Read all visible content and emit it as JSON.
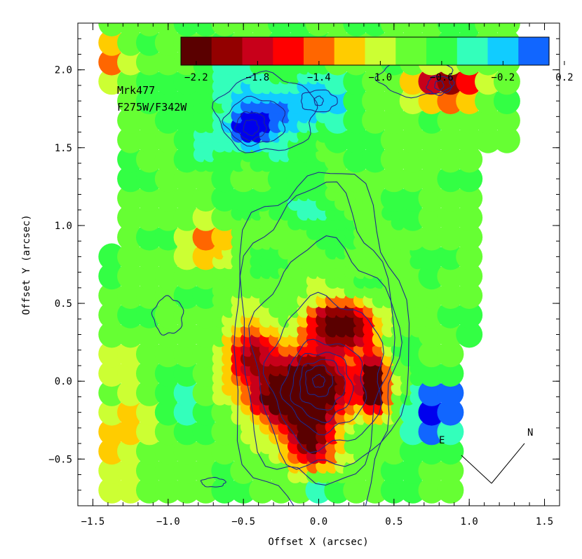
{
  "chart_data": {
    "type": "heatmap",
    "title": "",
    "annotations": [
      "Mrk477",
      "F275W/F342W"
    ],
    "xlabel": "Offset X (arcsec)",
    "ylabel": "Offset Y (arcsec)",
    "xlim": [
      -1.6,
      1.6
    ],
    "ylim": [
      -0.8,
      2.3
    ],
    "xticks": [
      -1.5,
      -1.0,
      -0.5,
      0.0,
      0.5,
      1.0,
      1.5
    ],
    "yticks": [
      -0.5,
      0.0,
      0.5,
      1.0,
      1.5,
      2.0
    ],
    "x_tick_labels": [
      "−1.5",
      "−1.0",
      "−0.5",
      "0.0",
      "0.5",
      "1.0",
      "1.5"
    ],
    "y_tick_labels": [
      "−0.5",
      "0.0",
      "0.5",
      "1.0",
      "1.5",
      "2.0"
    ],
    "colorbar": {
      "levels": [
        -2.3,
        -2.1,
        -1.9,
        -1.7,
        -1.5,
        -1.3,
        -1.1,
        -0.9,
        -0.7,
        -0.5,
        -0.3,
        -0.1,
        0.1
      ],
      "labels": [
        "−2.2",
        "−1.8",
        "−1.4",
        "−1.0",
        "−0.6",
        "−0.2",
        "0.2"
      ],
      "label_values": [
        -2.2,
        -1.8,
        -1.4,
        -1.0,
        -0.6,
        -0.2,
        0.2
      ],
      "colors": [
        "#5a0000",
        "#930000",
        "#c8001a",
        "#ff0000",
        "#ff6600",
        "#ffcc00",
        "#ccff33",
        "#66ff33",
        "#33ff44",
        "#33ffbb",
        "#11ccff",
        "#1166ff",
        "#0000ee"
      ]
    },
    "components": [
      {
        "x": 0.0,
        "y": 0.0,
        "sx": 0.2,
        "sy": 0.16,
        "amp": -1.7
      },
      {
        "x": 0.15,
        "y": 0.38,
        "sx": 0.16,
        "sy": 0.1,
        "amp": -1.7
      },
      {
        "x": -0.22,
        "y": -0.12,
        "sx": 0.16,
        "sy": 0.1,
        "amp": -1.5
      },
      {
        "x": 0.38,
        "y": 0.0,
        "sx": 0.06,
        "sy": 0.14,
        "amp": -1.6
      },
      {
        "x": -0.05,
        "y": -0.4,
        "sx": 0.12,
        "sy": 0.12,
        "amp": -1.4
      },
      {
        "x": -0.45,
        "y": 0.18,
        "sx": 0.12,
        "sy": 0.14,
        "amp": -1.2
      },
      {
        "x": -0.75,
        "y": 0.9,
        "sx": 0.12,
        "sy": 0.12,
        "amp": -0.5
      },
      {
        "x": 0.85,
        "y": 1.9,
        "sx": 0.18,
        "sy": 0.08,
        "amp": -1.2
      },
      {
        "x": -0.45,
        "y": 1.63,
        "sx": 0.07,
        "sy": 0.06,
        "amp": 0.9
      },
      {
        "x": -0.4,
        "y": 1.72,
        "sx": 0.3,
        "sy": 0.22,
        "amp": 0.55
      },
      {
        "x": 0.0,
        "y": 1.8,
        "sx": 0.22,
        "sy": 0.12,
        "amp": 0.35
      },
      {
        "x": -0.1,
        "y": 1.1,
        "sx": 0.15,
        "sy": 0.08,
        "amp": 0.35
      },
      {
        "x": 0.8,
        "y": -0.15,
        "sx": 0.1,
        "sy": 0.12,
        "amp": 0.95
      },
      {
        "x": 0.7,
        "y": -0.35,
        "sx": 0.08,
        "sy": 0.08,
        "amp": 0.6
      },
      {
        "x": -0.9,
        "y": -0.15,
        "sx": 0.1,
        "sy": 0.08,
        "amp": 0.4
      },
      {
        "x": 0.05,
        "y": -0.67,
        "sx": 0.1,
        "sy": 0.05,
        "amp": 0.4
      },
      {
        "x": -1.3,
        "y": -0.4,
        "sx": 0.15,
        "sy": 0.3,
        "amp": -0.45
      },
      {
        "x": -1.4,
        "y": 2.1,
        "sx": 0.1,
        "sy": 0.1,
        "amp": -0.6
      }
    ],
    "base_value": -0.75,
    "contours": [
      {
        "cx": 0.0,
        "cy": 0.0,
        "rx": 0.04,
        "ry": 0.04
      },
      {
        "cx": 0.0,
        "cy": 0.0,
        "rx": 0.09,
        "ry": 0.1
      },
      {
        "cx": 0.02,
        "cy": -0.02,
        "rx": 0.15,
        "ry": 0.16
      },
      {
        "cx": 0.02,
        "cy": -0.03,
        "rx": 0.2,
        "ry": 0.22
      },
      {
        "cx": 0.04,
        "cy": -0.03,
        "rx": 0.27,
        "ry": 0.29
      },
      {
        "cx": 0.05,
        "cy": 0.05,
        "rx": 0.38,
        "ry": 0.48
      },
      {
        "cx": 0.05,
        "cy": 0.15,
        "rx": 0.48,
        "ry": 0.72
      },
      {
        "cx": -0.02,
        "cy": 0.28,
        "rx": 0.5,
        "ry": 0.95
      },
      {
        "cx": 0.0,
        "cy": 0.22,
        "rx": 0.58,
        "ry": 1.12
      },
      {
        "cx": -0.45,
        "cy": 1.63,
        "rx": 0.05,
        "ry": 0.05
      },
      {
        "cx": -0.45,
        "cy": 1.64,
        "rx": 0.1,
        "ry": 0.09
      },
      {
        "cx": -0.42,
        "cy": 1.67,
        "rx": 0.2,
        "ry": 0.15
      },
      {
        "cx": -0.35,
        "cy": 1.72,
        "rx": 0.33,
        "ry": 0.25
      },
      {
        "cx": 0.0,
        "cy": 1.8,
        "rx": 0.03,
        "ry": 0.03
      },
      {
        "cx": 0.0,
        "cy": 1.8,
        "rx": 0.12,
        "ry": 0.07
      },
      {
        "cx": 0.8,
        "cy": 1.9,
        "rx": 0.03,
        "ry": 0.03
      },
      {
        "cx": 0.8,
        "cy": 1.9,
        "rx": 0.08,
        "ry": 0.06
      },
      {
        "cx": 0.65,
        "cy": 1.95,
        "rx": 0.25,
        "ry": 0.12
      },
      {
        "cx": -1.0,
        "cy": 0.42,
        "rx": 0.1,
        "ry": 0.12
      },
      {
        "cx": -0.7,
        "cy": -0.65,
        "rx": 0.08,
        "ry": 0.03
      }
    ],
    "compass": {
      "east_label": "E",
      "north_label": "N"
    }
  }
}
